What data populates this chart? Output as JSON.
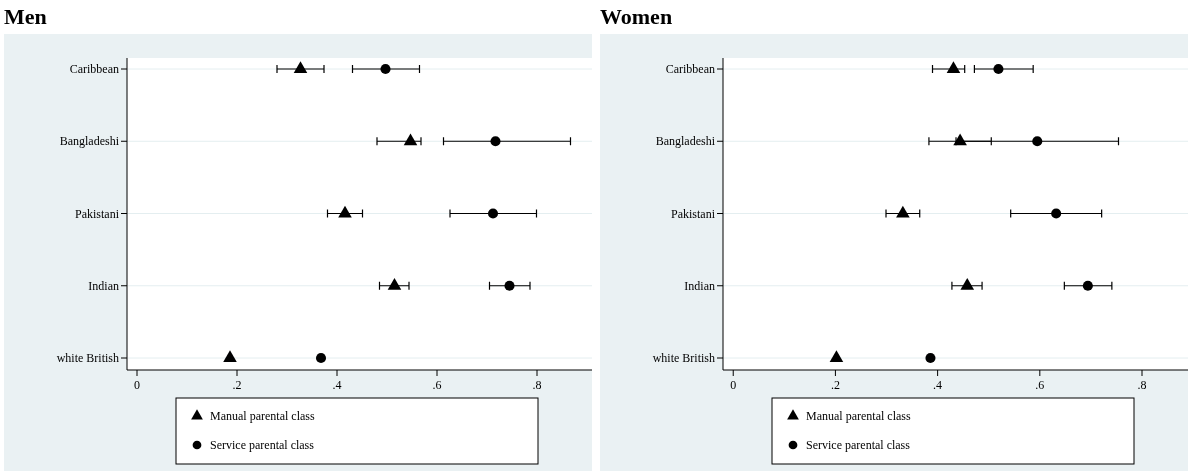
{
  "chart_data": [
    {
      "type": "scatter",
      "orientation": "horizontal",
      "title": "Men",
      "categories": [
        "Caribbean",
        "Bangladeshi",
        "Pakistani",
        "Indian",
        "white British"
      ],
      "xlim": [
        -0.02,
        0.91
      ],
      "xticks": [
        0,
        {
          "value": 0.2,
          "label": ".2"
        },
        {
          "value": 0.4,
          "label": ".4"
        },
        {
          "value": 0.6,
          "label": ".6"
        },
        {
          "value": 0.8,
          "label": ".8"
        }
      ],
      "grid": "y",
      "legend": "bottom",
      "series": [
        {
          "name": "Manual parental class",
          "color": "#000000",
          "marker": "triangle",
          "values": [
            0.327,
            0.547,
            0.416,
            0.515,
            0.186
          ],
          "errors": [
            [
              0.28,
              0.374
            ],
            [
              0.48,
              0.568
            ],
            [
              0.381,
              0.451
            ],
            [
              0.485,
              0.544
            ],
            null
          ]
        },
        {
          "name": "Service parental class",
          "color": "#000000",
          "marker": "circle",
          "values": [
            0.497,
            0.717,
            0.712,
            0.745,
            0.368
          ],
          "errors": [
            [
              0.431,
              0.565
            ],
            [
              0.613,
              0.867
            ],
            [
              0.626,
              0.799
            ],
            [
              0.705,
              0.786
            ],
            null
          ]
        }
      ]
    },
    {
      "type": "scatter",
      "orientation": "horizontal",
      "title": "Women",
      "categories": [
        "Caribbean",
        "Bangladeshi",
        "Pakistani",
        "Indian",
        "white British"
      ],
      "xlim": [
        -0.02,
        0.89
      ],
      "xticks": [
        0,
        {
          "value": 0.2,
          "label": ".2"
        },
        {
          "value": 0.4,
          "label": ".4"
        },
        {
          "value": 0.6,
          "label": ".6"
        },
        {
          "value": 0.8,
          "label": ".8"
        }
      ],
      "grid": "y",
      "legend": "bottom",
      "series": [
        {
          "name": "Manual parental class",
          "color": "#000000",
          "marker": "triangle",
          "values": [
            0.431,
            0.444,
            0.332,
            0.458,
            0.202
          ],
          "errors": [
            [
              0.39,
              0.453
            ],
            [
              0.383,
              0.505
            ],
            [
              0.299,
              0.365
            ],
            [
              0.428,
              0.487
            ],
            null
          ]
        },
        {
          "name": "Service parental class",
          "color": "#000000",
          "marker": "circle",
          "values": [
            0.519,
            0.595,
            0.632,
            0.694,
            0.386
          ],
          "errors": [
            [
              0.472,
              0.587
            ],
            [
              0.436,
              0.754
            ],
            [
              0.543,
              0.721
            ],
            [
              0.648,
              0.741
            ],
            null
          ]
        }
      ]
    }
  ]
}
